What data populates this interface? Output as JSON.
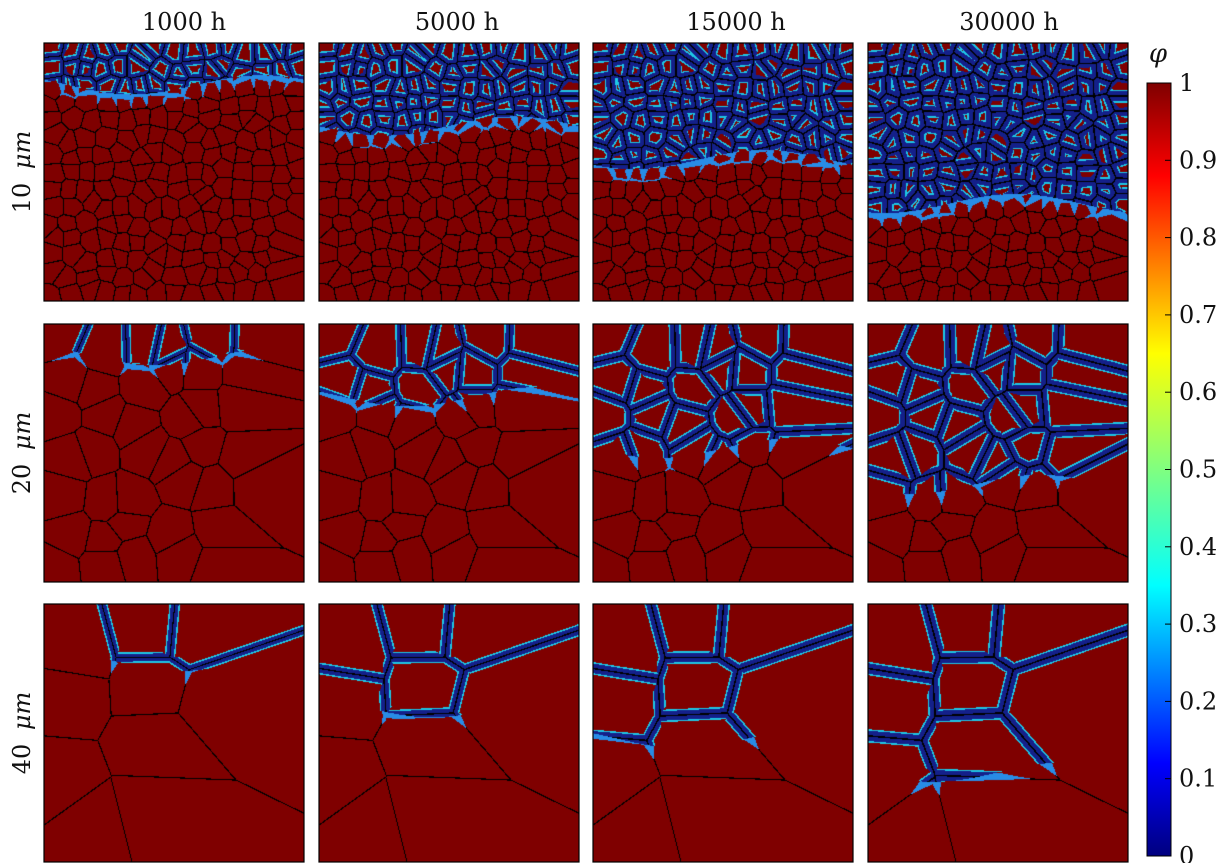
{
  "columns": [
    "1000 h",
    "5000 h",
    "15000 h",
    "30000 h"
  ],
  "rows": [
    {
      "label": "10",
      "unit": "μm"
    },
    {
      "label": "20",
      "unit": "μm"
    },
    {
      "label": "40",
      "unit": "μm"
    }
  ],
  "colorbar": {
    "symbol": "φ",
    "ticks": [
      "1",
      "0.9",
      "0.8",
      "0.7",
      "0.6",
      "0.5",
      "0.4",
      "0.3",
      "0.2",
      "0.1",
      "0"
    ],
    "colormap": "jet"
  },
  "colors": {
    "grain_interior": "#7f0000",
    "oxidized_path": "#14208a",
    "grain_boundary": "#000000"
  },
  "panels": {
    "oxidation_front_depth_fraction": [
      [
        0.16,
        0.32,
        0.45,
        0.62
      ],
      [
        0.12,
        0.28,
        0.48,
        0.62
      ],
      [
        0.22,
        0.4,
        0.52,
        0.65
      ]
    ],
    "grain_seeds_per_panel": [
      220,
      40,
      10
    ]
  }
}
